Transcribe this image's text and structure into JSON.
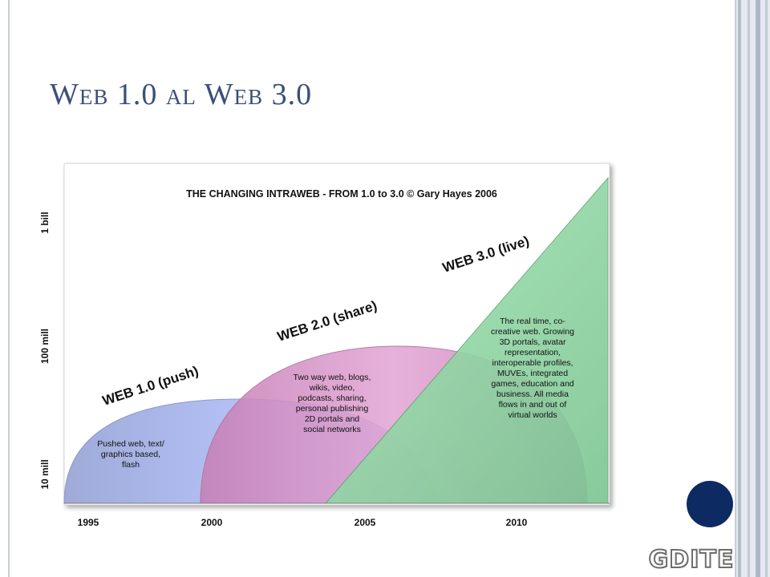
{
  "slide": {
    "title_parts": [
      {
        "t": "W",
        "sc": false
      },
      {
        "t": "EB",
        "sc": true
      },
      {
        "t": " 1.0 ",
        "sc": false
      },
      {
        "t": "AL",
        "sc": true
      },
      {
        "t": " W",
        "sc": false
      },
      {
        "t": "EB",
        "sc": true
      },
      {
        "t": " 3.0",
        "sc": false
      }
    ],
    "logo_text": "GDITE",
    "colors": {
      "title": "#3b4f78",
      "badge": "#0d2a63"
    }
  },
  "diagram": {
    "title": "THE CHANGING INTRAWEB - FROM 1.0 to 3.0 © Gary Hayes 2006",
    "y_axis_labels": [
      "1 bill",
      "100 mill",
      "10 mill"
    ],
    "x_axis_labels": [
      "1995",
      "2000",
      "2005",
      "2010"
    ],
    "phases": [
      {
        "id": "web1",
        "label": "WEB 1.0 (push)",
        "description": [
          "Pushed web, text/",
          "graphics based,",
          "flash"
        ],
        "color": "#a9b6ef"
      },
      {
        "id": "web2",
        "label": "WEB 2.0 (share)",
        "description": [
          "Two way web, blogs,",
          "wikis, video,",
          "podcasts, sharing,",
          "personal publishing",
          "2D portals and",
          "social networks"
        ],
        "color": "#d88fc4"
      },
      {
        "id": "web3",
        "label": "WEB 3.0 (live)",
        "description": [
          "The real time, co-",
          "creative web. Growing",
          "3D portals, avatar",
          "representation,",
          "interoperable profiles,",
          "MUVEs, integrated",
          "games, education and",
          "business. All media",
          "flows in and out of",
          "virtual worlds"
        ],
        "color": "#8fd3a3"
      }
    ]
  }
}
